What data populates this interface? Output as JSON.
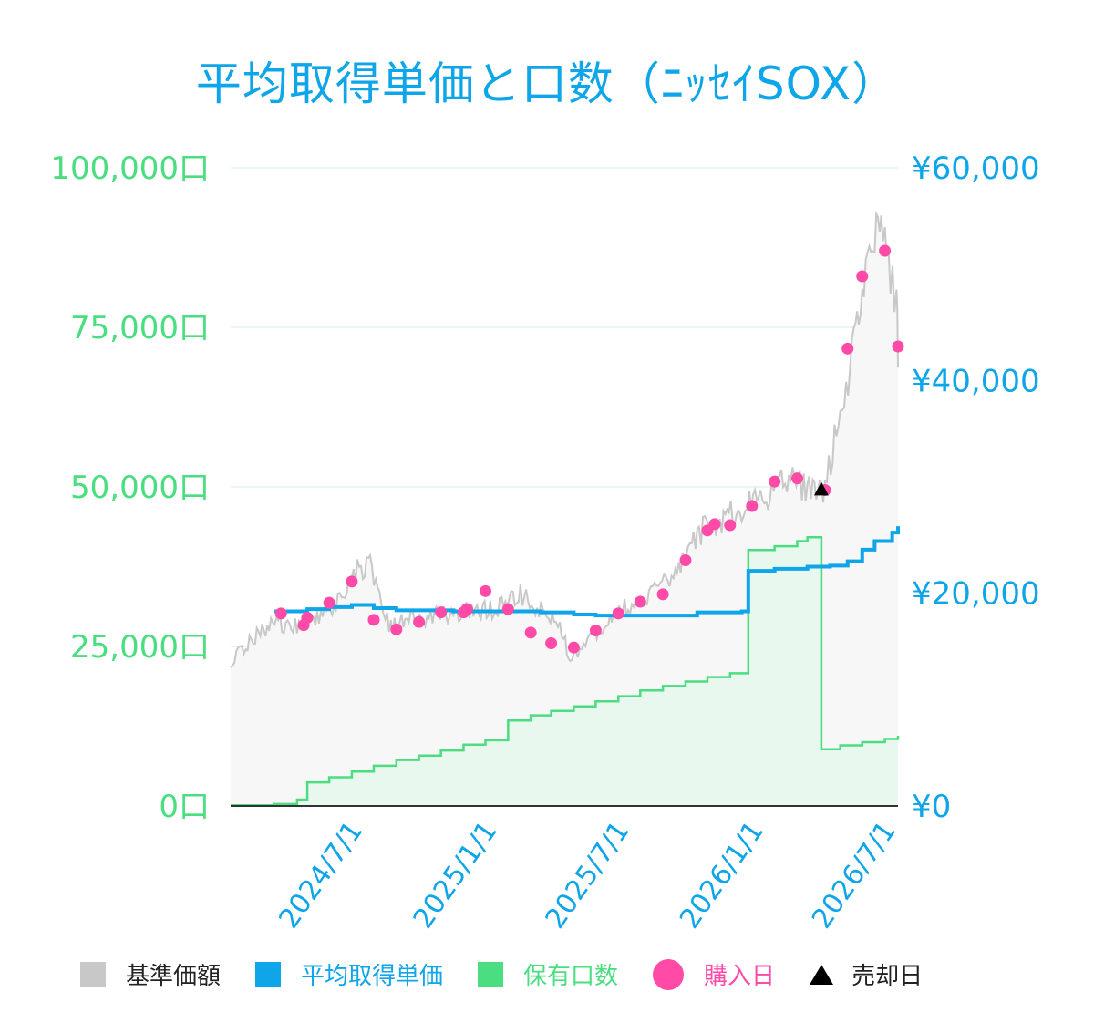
{
  "title": "平均取得単価と口数（ﾆｯｾｲSOX）",
  "colors": {
    "nav": "#c8c8c8",
    "avg": "#0ea5e9",
    "units": "#4ade80",
    "buy": "#ff4aa8",
    "sell": "#000000",
    "left_axis": "#4ade80",
    "right_axis": "#0ea5e9",
    "grid": "#e8f8ee"
  },
  "legend": [
    {
      "label": "基準価額",
      "color": "#c8c8c8",
      "shape": "square"
    },
    {
      "label": "平均取得単価",
      "color": "#0ea5e9",
      "shape": "square"
    },
    {
      "label": "保有口数",
      "color": "#4ade80",
      "shape": "square"
    },
    {
      "label": "購入日",
      "color": "#ff4aa8",
      "shape": "circle"
    },
    {
      "label": "売却日",
      "color": "#000000",
      "shape": "triangle"
    }
  ],
  "chart_data": {
    "type": "line",
    "x_range": [
      "2024-01-01",
      "2026-07-03"
    ],
    "x_ticks": [
      "2024/7/1",
      "2025/1/1",
      "2025/7/1",
      "2026/1/1",
      "2026/7/1"
    ],
    "left_axis": {
      "ticks": [
        "0口",
        "25,000口",
        "50,000口",
        "75,000口",
        "100,000口"
      ],
      "ylim": [
        0,
        100000
      ]
    },
    "right_axis": {
      "ticks": [
        "¥0",
        "¥20,000",
        "¥40,000",
        "¥60,000"
      ],
      "ylim": [
        0,
        60000
      ]
    },
    "grid": true,
    "legend_position": "bottom",
    "series": [
      {
        "name": "基準価額",
        "axis": "right",
        "kind": "area",
        "points": [
          [
            "2024-01-01",
            13700
          ],
          [
            "2024-02-01",
            15800
          ],
          [
            "2024-03-01",
            17100
          ],
          [
            "2024-04-01",
            16900
          ],
          [
            "2024-05-01",
            17700
          ],
          [
            "2024-06-01",
            19600
          ],
          [
            "2024-06-15",
            21900
          ],
          [
            "2024-07-10",
            22800
          ],
          [
            "2024-08-05",
            16700
          ],
          [
            "2024-09-01",
            17800
          ],
          [
            "2024-10-01",
            17800
          ],
          [
            "2024-11-01",
            18200
          ],
          [
            "2024-12-01",
            18200
          ],
          [
            "2025-01-01",
            18600
          ],
          [
            "2025-02-01",
            19900
          ],
          [
            "2025-03-01",
            18500
          ],
          [
            "2025-04-01",
            16200
          ],
          [
            "2025-04-10",
            13100
          ],
          [
            "2025-05-01",
            15500
          ],
          [
            "2025-06-01",
            17500
          ],
          [
            "2025-07-01",
            19000
          ],
          [
            "2025-08-01",
            20200
          ],
          [
            "2025-09-01",
            21700
          ],
          [
            "2025-10-01",
            25600
          ],
          [
            "2025-11-01",
            26800
          ],
          [
            "2025-12-01",
            27900
          ],
          [
            "2026-01-01",
            28900
          ],
          [
            "2026-02-01",
            30800
          ],
          [
            "2026-03-01",
            29800
          ],
          [
            "2026-03-25",
            29300
          ],
          [
            "2026-04-15",
            37500
          ],
          [
            "2026-05-01",
            42000
          ],
          [
            "2026-05-15",
            49000
          ],
          [
            "2026-06-01",
            54000
          ],
          [
            "2026-06-10",
            56800
          ],
          [
            "2026-06-20",
            50000
          ],
          [
            "2026-07-01",
            48500
          ],
          [
            "2026-07-03",
            41200
          ]
        ]
      },
      {
        "name": "平均取得単価",
        "axis": "right",
        "kind": "step",
        "points": [
          [
            "2024-03-01",
            18300
          ],
          [
            "2024-04-15",
            18500
          ],
          [
            "2024-05-15",
            18700
          ],
          [
            "2024-06-15",
            18900
          ],
          [
            "2024-07-15",
            18600
          ],
          [
            "2024-08-15",
            18400
          ],
          [
            "2024-11-01",
            18300
          ],
          [
            "2025-03-01",
            18200
          ],
          [
            "2025-04-15",
            18000
          ],
          [
            "2025-05-15",
            17900
          ],
          [
            "2025-10-01",
            18200
          ],
          [
            "2025-12-01",
            18300
          ],
          [
            "2025-12-10",
            22100
          ],
          [
            "2026-01-15",
            22300
          ],
          [
            "2026-03-01",
            22500
          ],
          [
            "2026-04-01",
            22600
          ],
          [
            "2026-04-25",
            23000
          ],
          [
            "2026-05-15",
            24100
          ],
          [
            "2026-06-01",
            24900
          ],
          [
            "2026-06-25",
            25700
          ],
          [
            "2026-07-03",
            26300
          ]
        ]
      },
      {
        "name": "保有口数",
        "axis": "left",
        "kind": "step-area",
        "points": [
          [
            "2024-01-01",
            100
          ],
          [
            "2024-03-01",
            300
          ],
          [
            "2024-04-01",
            1000
          ],
          [
            "2024-04-15",
            3700
          ],
          [
            "2024-05-15",
            4500
          ],
          [
            "2024-06-15",
            5400
          ],
          [
            "2024-07-15",
            6300
          ],
          [
            "2024-08-15",
            7200
          ],
          [
            "2024-09-15",
            7900
          ],
          [
            "2024-10-15",
            8700
          ],
          [
            "2024-11-15",
            9600
          ],
          [
            "2024-12-15",
            10300
          ],
          [
            "2025-01-15",
            13400
          ],
          [
            "2025-02-15",
            14200
          ],
          [
            "2025-03-15",
            14900
          ],
          [
            "2025-04-15",
            15600
          ],
          [
            "2025-05-15",
            16400
          ],
          [
            "2025-06-15",
            17200
          ],
          [
            "2025-07-15",
            18100
          ],
          [
            "2025-08-15",
            18800
          ],
          [
            "2025-09-15",
            19500
          ],
          [
            "2025-10-15",
            20200
          ],
          [
            "2025-11-15",
            20800
          ],
          [
            "2025-12-10",
            40100
          ],
          [
            "2026-01-15",
            40700
          ],
          [
            "2026-02-15",
            41500
          ],
          [
            "2026-03-01",
            42100
          ],
          [
            "2026-03-20",
            8900
          ],
          [
            "2026-04-15",
            9500
          ],
          [
            "2026-05-15",
            10000
          ],
          [
            "2026-06-15",
            10500
          ],
          [
            "2026-07-03",
            11000
          ]
        ]
      }
    ],
    "buy_dates": [
      [
        "2024-03-10",
        18100
      ],
      [
        "2024-04-10",
        17000
      ],
      [
        "2024-04-15",
        17700
      ],
      [
        "2024-05-15",
        19100
      ],
      [
        "2024-06-15",
        21100
      ],
      [
        "2024-07-15",
        17500
      ],
      [
        "2024-08-15",
        16600
      ],
      [
        "2024-09-15",
        17300
      ],
      [
        "2024-10-15",
        18200
      ],
      [
        "2024-11-15",
        18200
      ],
      [
        "2024-11-20",
        18500
      ],
      [
        "2024-12-15",
        20200
      ],
      [
        "2025-01-15",
        18500
      ],
      [
        "2025-02-15",
        16300
      ],
      [
        "2025-03-15",
        15300
      ],
      [
        "2025-04-15",
        14900
      ],
      [
        "2025-05-15",
        16500
      ],
      [
        "2025-06-15",
        18100
      ],
      [
        "2025-07-15",
        19200
      ],
      [
        "2025-08-15",
        19900
      ],
      [
        "2025-09-15",
        23100
      ],
      [
        "2025-10-15",
        25900
      ],
      [
        "2025-10-25",
        26500
      ],
      [
        "2025-11-15",
        26400
      ],
      [
        "2025-12-15",
        28200
      ],
      [
        "2026-01-15",
        30500
      ],
      [
        "2026-02-15",
        30800
      ],
      [
        "2026-03-25",
        29700
      ],
      [
        "2026-04-25",
        43000
      ],
      [
        "2026-05-15",
        49800
      ],
      [
        "2026-06-15",
        52200
      ],
      [
        "2026-07-03",
        43200
      ]
    ],
    "sell_dates": [
      [
        "2026-03-20",
        29800
      ]
    ]
  }
}
